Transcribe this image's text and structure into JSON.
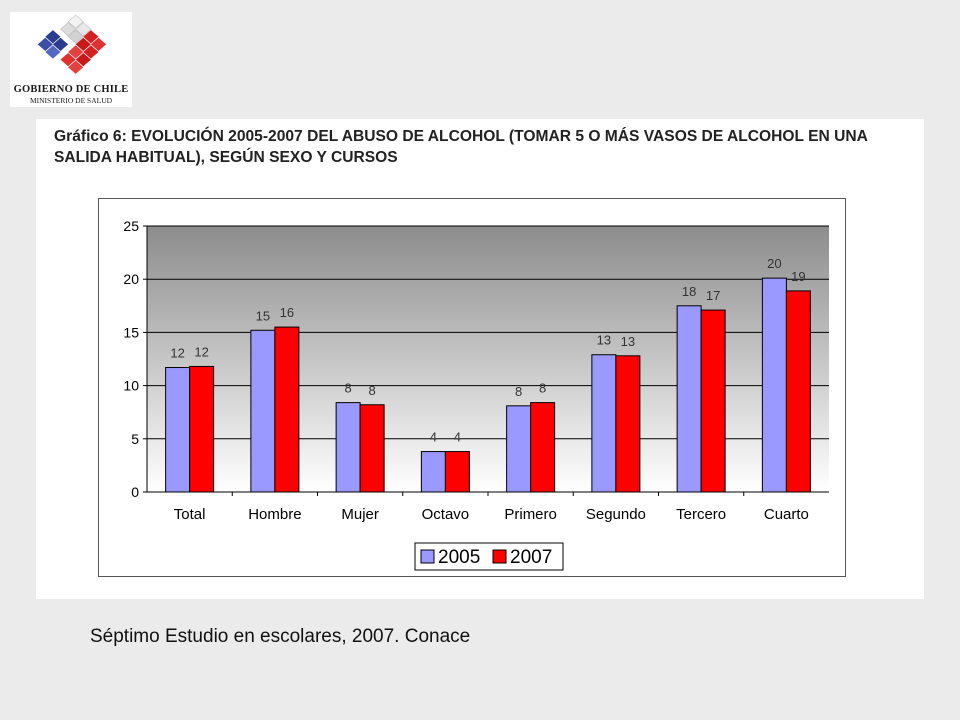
{
  "header": {
    "logo_line1": "GOBIERNO DE CHILE",
    "logo_line2": "MINISTERIO DE SALUD"
  },
  "colors": {
    "series_2005": "#9999ff",
    "series_2007": "#ff0000",
    "background": "#ebebeb"
  },
  "chart_data": {
    "type": "bar",
    "title": "Gráfico 6: EVOLUCIÓN  2005-2007 DEL ABUSO DE ALCOHOL (TOMAR 5 O MÁS VASOS DE ALCOHOL EN UNA SALIDA HABITUAL), SEGÚN SEXO Y CURSOS",
    "xlabel": "",
    "ylabel": "",
    "categories": [
      "Total",
      "Hombre",
      "Mujer",
      "Octavo",
      "Primero",
      "Segundo",
      "Tercero",
      "Cuarto"
    ],
    "series": [
      {
        "name": "2005",
        "values": [
          11.7,
          15.2,
          8.4,
          3.8,
          8.1,
          12.9,
          17.5,
          20.1
        ],
        "labels": [
          "12",
          "15",
          "8",
          "4",
          "8",
          "13",
          "18",
          "20"
        ]
      },
      {
        "name": "2007",
        "values": [
          11.8,
          15.5,
          8.2,
          3.8,
          8.4,
          12.8,
          17.1,
          18.9
        ],
        "labels": [
          "12",
          "16",
          "8",
          "4",
          "8",
          "13",
          "17",
          "19"
        ]
      }
    ],
    "ylim": [
      0,
      25
    ],
    "yticks": [
      "0",
      "5",
      "10",
      "15",
      "20",
      "25"
    ],
    "grid": true,
    "legend_position": "bottom-center"
  },
  "footer": {
    "source_note": "Séptimo Estudio en escolares, 2007.  Conace"
  }
}
